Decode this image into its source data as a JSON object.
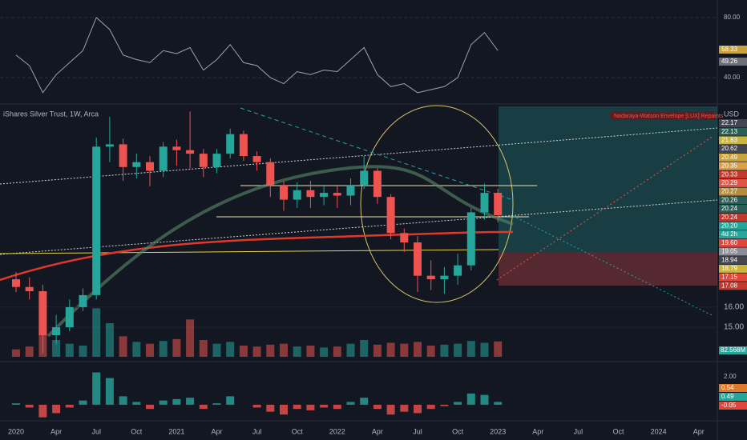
{
  "chart_data": {
    "type": "candlestick",
    "title": "iShares Silver Trust, 1W, Arca",
    "currency": "USD",
    "indicator_label": "Nadaraya-Watson Envelope [LUX] Repaints",
    "categories": [
      "2020",
      null,
      null,
      "Apr",
      null,
      null,
      "Jul",
      null,
      null,
      "Oct",
      null,
      null,
      "2021",
      null,
      null,
      "Apr",
      null,
      null,
      "Jul",
      null,
      null,
      "Oct",
      null,
      null,
      "2022",
      null,
      null,
      "Apr",
      null,
      null,
      "Jul",
      null,
      null,
      "Oct",
      null,
      null,
      "2023",
      null,
      null,
      "Apr",
      null,
      null,
      "Jul",
      null,
      null,
      "Oct",
      null,
      null,
      "2024",
      null,
      null,
      "Apr"
    ],
    "open": [
      17.5,
      17.07,
      16.84,
      14.62,
      15.0,
      16.0,
      16.63,
      26.8,
      27.0,
      25.1,
      25.5,
      24.8,
      26.8,
      26.5,
      26.2,
      25.1,
      26.2,
      27.9,
      26.0,
      25.5,
      23.7,
      22.6,
      23.3,
      22.8,
      23.1,
      22.9,
      23.7,
      24.8,
      22.8,
      20.3,
      19.7,
      17.7,
      17.5,
      17.7,
      18.3,
      21.7,
      23.1,
      null,
      null,
      null,
      null,
      null,
      null,
      null,
      null,
      null,
      null,
      null,
      null,
      null,
      null,
      null
    ],
    "high": [
      17.9,
      17.6,
      17.2,
      15.6,
      16.4,
      17.0,
      27.6,
      29.5,
      27.5,
      26.2,
      26.0,
      27.2,
      27.4,
      30.0,
      26.6,
      26.6,
      28.4,
      28.2,
      26.4,
      25.8,
      24.0,
      23.9,
      24.0,
      23.6,
      23.6,
      24.2,
      26.0,
      25.0,
      23.0,
      20.6,
      20.1,
      18.6,
      18.2,
      19.0,
      22.0,
      23.8,
      23.4,
      null,
      null,
      null,
      null,
      null,
      null,
      null,
      null,
      null,
      null,
      null,
      null,
      null,
      null,
      null
    ],
    "low": [
      16.8,
      16.4,
      13.8,
      14.2,
      14.8,
      15.8,
      16.4,
      25.5,
      24.0,
      24.2,
      23.6,
      24.3,
      25.2,
      25.0,
      24.3,
      24.6,
      25.8,
      25.6,
      24.8,
      22.8,
      21.8,
      22.0,
      22.0,
      22.2,
      22.0,
      22.2,
      23.4,
      22.3,
      19.9,
      19.1,
      16.8,
      16.9,
      16.7,
      17.2,
      18.0,
      21.2,
      21.0,
      null,
      null,
      null,
      null,
      null,
      null,
      null,
      null,
      null,
      null,
      null,
      null,
      null,
      null,
      null
    ],
    "close": [
      17.07,
      16.84,
      14.62,
      15.0,
      16.0,
      16.63,
      26.8,
      27.0,
      25.1,
      25.5,
      24.8,
      26.8,
      26.5,
      26.2,
      25.1,
      26.2,
      27.9,
      26.0,
      25.5,
      23.7,
      22.6,
      23.3,
      22.8,
      23.1,
      22.9,
      23.7,
      24.8,
      22.8,
      20.3,
      19.7,
      17.7,
      17.5,
      17.7,
      18.3,
      21.7,
      23.1,
      21.5,
      null,
      null,
      null,
      null,
      null,
      null,
      null,
      null,
      null,
      null,
      null,
      null,
      null,
      null,
      null
    ],
    "ylim": [
      13.5,
      30.5
    ],
    "log_scale": true,
    "yticks": [
      {
        "value": 15,
        "label": "15.00"
      },
      {
        "value": 16,
        "label": "16.00"
      }
    ],
    "up_color": "#26a69a",
    "down_color": "#ef5350",
    "volume": [
      40,
      55,
      150,
      90,
      70,
      60,
      260,
      180,
      110,
      80,
      70,
      85,
      95,
      200,
      90,
      70,
      80,
      60,
      55,
      65,
      70,
      55,
      60,
      50,
      55,
      70,
      90,
      65,
      75,
      70,
      80,
      60,
      65,
      70,
      85,
      75,
      82.568,
      null,
      null,
      null,
      null,
      null,
      null,
      null,
      null,
      null,
      null,
      null,
      null,
      null,
      null,
      null
    ],
    "volume_label": "82.568M",
    "vlim": [
      0,
      300
    ],
    "price_labels": [
      {
        "label": "22.17",
        "color": "#434651"
      },
      {
        "label": "22.13",
        "color": "#2a5d55"
      },
      {
        "label": "21.83",
        "color": "#c9b53c"
      },
      {
        "label": "20.62",
        "color": "#434651"
      },
      {
        "label": "20.49",
        "color": "#c9a23c"
      },
      {
        "label": "20.35",
        "color": "#d8a14a"
      },
      {
        "label": "20.33",
        "color": "#c0392b"
      },
      {
        "label": "20.29",
        "color": "#e05545"
      },
      {
        "label": "20.27",
        "color": "#b58b3c"
      },
      {
        "label": "20.26",
        "color": "#2a5d55"
      },
      {
        "label": "20.24",
        "color": "#2a5d55"
      },
      {
        "label": "20.24",
        "color": "#c0392b"
      },
      {
        "label": "20.20",
        "color": "#26a69a"
      },
      {
        "label": "4d 2h",
        "color": "#26a69a"
      },
      {
        "label": "19.60",
        "color": "#e0463a"
      },
      {
        "label": "19.05",
        "color": "#8a8d95"
      },
      {
        "label": "18.94",
        "color": "#434651"
      },
      {
        "label": "18.79",
        "color": "#c9b53c"
      },
      {
        "label": "17.15",
        "color": "#e0463a"
      },
      {
        "label": "17.08",
        "color": "#c0392b"
      }
    ],
    "rsi": {
      "values": [
        55,
        48,
        30,
        42,
        50,
        58,
        80,
        72,
        55,
        52,
        50,
        58,
        56,
        60,
        45,
        52,
        62,
        50,
        48,
        40,
        36,
        44,
        42,
        45,
        44,
        52,
        60,
        42,
        34,
        36,
        30,
        32,
        34,
        40,
        62,
        70,
        58,
        null,
        null,
        null,
        null,
        null,
        null,
        null,
        null,
        null,
        null,
        null,
        null,
        null,
        null,
        null
      ],
      "ylim": [
        23.5,
        91.7
      ],
      "yticks": [
        {
          "value": 40,
          "label": "40.00"
        },
        {
          "value": 80,
          "label": "80.00"
        }
      ],
      "labels": [
        {
          "label": "58.33",
          "color": "#c9a23c"
        },
        {
          "label": "49.26",
          "color": "#6c6f78"
        }
      ],
      "color": "#9fa2ab"
    },
    "macd": {
      "values": [
        0.1,
        -0.2,
        -0.9,
        -0.6,
        -0.2,
        0.3,
        2.3,
        1.9,
        0.6,
        0.2,
        -0.3,
        0.3,
        0.4,
        0.5,
        -0.3,
        0.1,
        0.6,
        0.0,
        -0.2,
        -0.5,
        -0.7,
        -0.3,
        -0.4,
        -0.2,
        -0.3,
        0.2,
        0.5,
        -0.3,
        -0.7,
        -0.5,
        -0.6,
        -0.3,
        -0.1,
        0.2,
        0.8,
        0.7,
        0.2,
        null,
        null,
        null,
        null,
        null,
        null,
        null,
        null,
        null,
        null,
        null,
        null,
        null,
        null,
        null
      ],
      "ylim": [
        -1.03,
        2.9
      ],
      "yticks": [
        {
          "value": 2,
          "label": "2.00"
        }
      ],
      "labels": [
        {
          "label": "0.54",
          "color": "#e07a2a"
        },
        {
          "label": "0.49",
          "color": "#26a69a"
        },
        {
          "label": "-0.05",
          "color": "#e0463a"
        }
      ]
    }
  }
}
